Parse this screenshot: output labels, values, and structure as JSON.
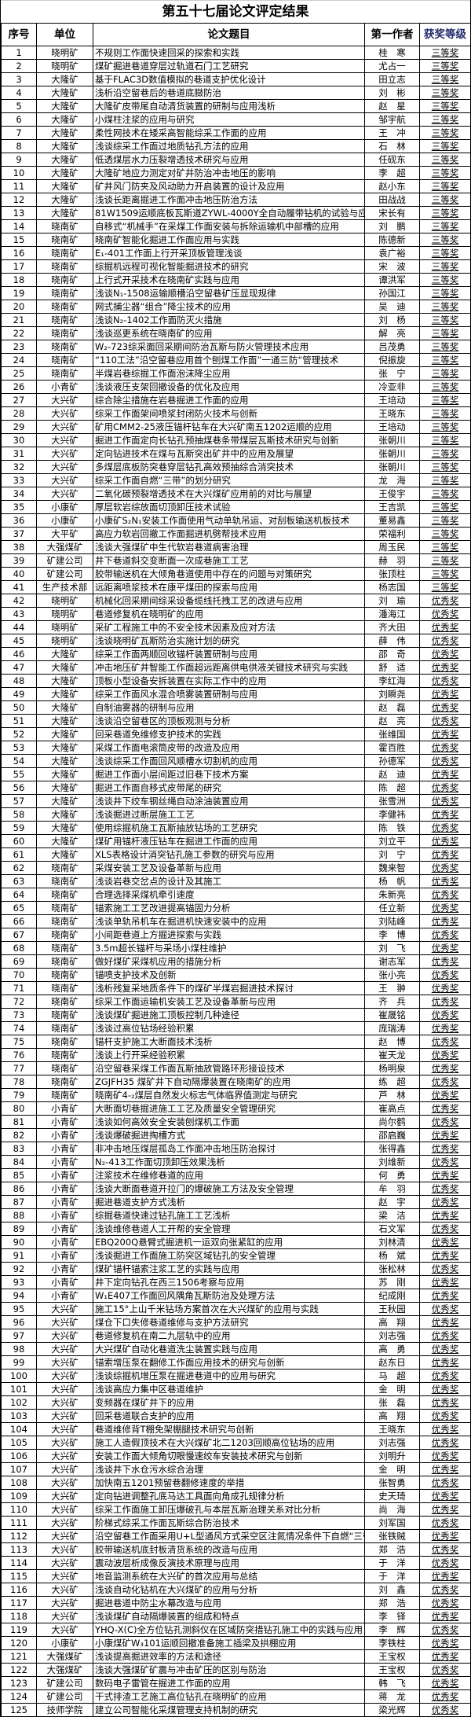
{
  "title": "第五十七届论文评定结果",
  "headers": {
    "no": "序号",
    "unit": "单位",
    "paper": "论文题目",
    "author": "第一作者",
    "award": "获奖等级"
  },
  "colors": {
    "award_header": "#1f2a6b",
    "border": "#000000"
  },
  "rows": [
    [
      "1",
      "晓明矿",
      "不规则工作面快速回采的探索和实践",
      "桂　寒",
      "三等奖"
    ],
    [
      "2",
      "晓明矿",
      "煤矿掘进巷道穿层过轨道石门工艺研究",
      "尤占一",
      "三等奖"
    ],
    [
      "3",
      "大隆矿",
      "基于FLAC3D数值模拟的巷道支护优化设计",
      "田立志",
      "三等奖"
    ],
    [
      "4",
      "大隆矿",
      "浅析沿空留巷后的巷道底臌防治",
      "刘　彬",
      "三等奖"
    ],
    [
      "5",
      "大隆矿",
      "大隆矿皮带尾自动清货装置的研制与应用浅析",
      "赵　星",
      "三等奖"
    ],
    [
      "6",
      "大隆矿",
      "小煤柱注浆的应用与研究",
      "邹宇航",
      "三等奖"
    ],
    [
      "7",
      "大隆矿",
      "柔性网技术在矮采高智能综采工作面的应用",
      "王　冲",
      "三等奖"
    ],
    [
      "8",
      "大隆矿",
      "浅谈综采工作面过地质钻孔方法的应用",
      "石　林",
      "三等奖"
    ],
    [
      "9",
      "大隆矿",
      "低透煤层水力压裂增透技术研究与应用",
      "任砚东",
      "三等奖"
    ],
    [
      "10",
      "大隆矿",
      "大隆矿地应力测定对矿井防治冲击地压的影响",
      "李　超",
      "三等奖"
    ],
    [
      "11",
      "大隆矿",
      "矿井风门防夹及风动助力开启装置的设计及应用",
      "赵小东",
      "三等奖"
    ],
    [
      "12",
      "大隆矿",
      "浅谈长距离掘进工作面冲击地压防治方法",
      "田战战",
      "三等奖"
    ],
    [
      "13",
      "大隆矿",
      "81W1509运顺底板瓦斯道ZYWL-4000Y全自动履带钻机的试验与应用",
      "宋长有",
      "三等奖"
    ],
    [
      "14",
      "晓南矿",
      "自移式“机械手”在采煤工作面安装与拆除运输机中部槽的应用",
      "刘　鹏",
      "三等奖"
    ],
    [
      "15",
      "晓南矿",
      "晓南矿智能化掘进工作面应用与实践",
      "陈德新",
      "三等奖"
    ],
    [
      "16",
      "晓南矿",
      "E₁-401工作面上行开采顶板管理浅谈",
      "袁广裕",
      "三等奖"
    ],
    [
      "17",
      "晓南矿",
      "综掘机远程可视化智能掘进技术的研究",
      "宋　波",
      "三等奖"
    ],
    [
      "18",
      "晓南矿",
      "上行式开采技术在晓南矿实践与应用",
      "谭洪军",
      "三等奖"
    ],
    [
      "19",
      "晓南矿",
      "浅谈N₁-1508运输顺槽沿空留巷矿压显现规律",
      "孙国江",
      "三等奖"
    ],
    [
      "20",
      "晓南矿",
      "网式捕尘器“组合”降尘技术的应用",
      "吴　迪",
      "三等奖"
    ],
    [
      "21",
      "晓南矿",
      "浅谈N₂-1402工作面防灭火措施",
      "刘　杨",
      "三等奖"
    ],
    [
      "22",
      "晓南矿",
      "浅谈巡更系统在晓南矿的应用",
      "解　亮",
      "三等奖"
    ],
    [
      "23",
      "晓南矿",
      "W₂-723综采面回采期间防治瓦斯与防火管理技术应用",
      "吕茂勇",
      "三等奖"
    ],
    [
      "24",
      "晓南矿",
      " “110工法”沿空留巷应用首个刨煤工作面”一通三防“管理技术",
      "倪振旋",
      "三等奖"
    ],
    [
      "25",
      "晓南矿",
      "半煤岩巷综掘工作面泡沫降尘应用",
      "张　宁",
      "三等奖"
    ],
    [
      "26",
      "小青矿",
      "浅谈液压支架回撤设备的优化及应用",
      "冷亚非",
      "三等奖"
    ],
    [
      "27",
      "大兴矿",
      "综合除尘措施在岩巷掘进工作面的应用",
      "王培动",
      "三等奖"
    ],
    [
      "28",
      "大兴矿",
      "综采工作面架间喷浆封闭防火技术与创新",
      "王晓东",
      "三等奖"
    ],
    [
      "29",
      "大兴矿",
      "矿用CMM2-25液压锚杆钻车在大兴矿南五1202运顺的应用",
      "王培动",
      "三等奖"
    ],
    [
      "30",
      "大兴矿",
      "掘进工作面定向长钻孔预抽煤巷条带煤层瓦斯技术研究与创新",
      "张朝川",
      "三等奖"
    ],
    [
      "31",
      "大兴矿",
      "定向钻进技术在煤与瓦斯突出矿井中的应用及展望",
      "张朝川",
      "三等奖"
    ],
    [
      "32",
      "大兴矿",
      "多煤层底板防突巷穿层钻孔高效预抽综合消突技术",
      "张朝川",
      "三等奖"
    ],
    [
      "33",
      "大兴矿",
      "综采工作面自燃“三带”的划分研究",
      "龙　海",
      "三等奖"
    ],
    [
      "34",
      "大兴矿",
      "二氧化碳预裂增透技术在大兴煤矿应用前的对比与展望",
      "王俊宇",
      "三等奖"
    ],
    [
      "35",
      "小康矿",
      "厚层软岩综放面切顶卸压技术试验",
      "王吉凯",
      "三等奖"
    ],
    [
      "36",
      "小康矿",
      "小康矿S₂N₁安装工作面使用气动单轨吊运、对刮板输送机板技术",
      "董易鑫",
      "三等奖"
    ],
    [
      "37",
      "大平矿",
      "高应力软岩回撤工作面掘进机劈帮技术应用",
      "荣福利",
      "三等奖"
    ],
    [
      "38",
      "大强煤矿",
      "浅谈大强煤矿中生代软岩巷道病害治理",
      "周玉民",
      "三等奖"
    ],
    [
      "39",
      "矿建公司",
      "井下巷道斜交变断面一次成巷施工工艺",
      "赫　羽",
      "三等奖"
    ],
    [
      "40",
      "矿建公司",
      "胶带输送机在大倾角巷道使用中存在的问题与对策研究",
      "张顶柱",
      "三等奖"
    ],
    [
      "41",
      "生产技术部",
      "远距离喷浆技术在康平煤田的探索与应用",
      "杨志国",
      "三等奖"
    ],
    [
      "42",
      "晓明矿",
      "机械化回采期间综采设备缆线托拽工艺的改进与应用",
      "刘　瑜",
      "优秀奖"
    ],
    [
      "43",
      "晓明矿",
      "巷道修复机在晓明矿的应用",
      "潘海江",
      "优秀奖"
    ],
    [
      "44",
      "晓明矿",
      "采矿工程施工中的不安全技术因素及应对方法",
      "齐大田",
      "优秀奖"
    ],
    [
      "45",
      "晓明矿",
      "浅谈晓明矿瓦斯防治实施计划的研究",
      "薛　伟",
      "优秀奖"
    ],
    [
      "46",
      "大隆矿",
      "综采工作面两顺回收锚杆装置研制与应用",
      "邵　奇",
      "优秀奖"
    ],
    [
      "47",
      "大隆矿",
      "冲击地压矿井智能工作面超远距离供电供液关键技术研究与实践",
      "舒　适",
      "优秀奖"
    ],
    [
      "48",
      "大隆矿",
      "顶板小型设备安拆装置在实际工作中的应用",
      "李红海",
      "优秀奖"
    ],
    [
      "49",
      "大隆矿",
      "综采工作面风水混合喷雾装置研制与应用",
      "刘瞬尧",
      "优秀奖"
    ],
    [
      "50",
      "大隆矿",
      "自制油雾器的研制与应用",
      "赵　磊",
      "优秀奖"
    ],
    [
      "51",
      "大隆矿",
      "浅谈沿空留巷区的顶板观测与分析",
      "赵　亮",
      "优秀奖"
    ],
    [
      "52",
      "大隆矿",
      "回采巷道免维修支护技术的实践",
      "张维国",
      "优秀奖"
    ],
    [
      "53",
      "大隆矿",
      "采煤工作面电滚筒皮带的改造及应用",
      "霍百胜",
      "优秀奖"
    ],
    [
      "54",
      "大隆矿",
      "浅谈综采工作面回风顺槽水切割机的应用",
      "孙德军",
      "优秀奖"
    ],
    [
      "55",
      "大隆矿",
      "掘进工作面小层间距过旧巷下技术方案",
      "赵　迪",
      "优秀奖"
    ],
    [
      "56",
      "大隆矿",
      "掘进工作面自移式皮带尾的研究",
      "陈　超",
      "优秀奖"
    ],
    [
      "57",
      "大隆矿",
      "浅谈井下绞车钢丝绳自动涂油装置应用",
      "张雪洲",
      "优秀奖"
    ],
    [
      "58",
      "大隆矿",
      "浅谈掘进过断层施工工艺",
      "李健祎",
      "优秀奖"
    ],
    [
      "59",
      "大隆矿",
      "使用综掘机施工瓦斯抽放钻场的工艺研究",
      "陈　铁",
      "优秀奖"
    ],
    [
      "60",
      "大隆矿",
      "煤矿用锚杆液压钻车在掘进工作面的应用",
      "刘立平",
      "优秀奖"
    ],
    [
      "61",
      "大隆矿",
      "XLS表格设计消突钻孔施工参数的研究与应用",
      "刘　宁",
      "优秀奖"
    ],
    [
      "62",
      "晓南矿",
      "采煤安装工艺及设备革新与应用",
      "魏来智",
      "优秀奖"
    ],
    [
      "63",
      "晓南矿",
      "浅谈岩巷交岔点的设计及其施工",
      "杨　帆",
      "优秀奖"
    ],
    [
      "64",
      "晓南矿",
      "合理选择采煤机牵引速度",
      "朱新亮",
      "优秀奖"
    ],
    [
      "65",
      "晓南矿",
      "锚索施工工艺改进提高锚固力分析",
      "任立新",
      "优秀奖"
    ],
    [
      "66",
      "晓南矿",
      "浅谈单轨吊机车在掘进机快速安装中的应用",
      "刘陆峰",
      "优秀奖"
    ],
    [
      "67",
      "晓南矿",
      "小间距巷道上方掘进探索与实践",
      "李　博",
      "优秀奖"
    ],
    [
      "68",
      "晓南矿",
      "3.5m超长锚杆与采场小煤柱维护",
      "刘　飞",
      "优秀奖"
    ],
    [
      "69",
      "晓南矿",
      "做好煤矿采煤机应用的措施分析",
      "谢志军",
      "优秀奖"
    ],
    [
      "70",
      "晓南矿",
      "锚喷支护技术及创新",
      "张小亮",
      "优秀奖"
    ],
    [
      "71",
      "晓南矿",
      "浅析残复采地质条件下的煤矿半煤岩掘进技术探讨",
      "王　翀",
      "优秀奖"
    ],
    [
      "72",
      "晓南矿",
      "综采工作面运输机安装工艺及设备革新与应用",
      "齐　兵",
      "优秀奖"
    ],
    [
      "73",
      "晓南矿",
      "浅谈煤矿掘进施工顶板控制几种途径",
      "崔晟铭",
      "优秀奖"
    ],
    [
      "74",
      "晓南矿",
      "浅谈过高位钻场经验积累",
      "庞瑞涛",
      "优秀奖"
    ],
    [
      "75",
      "晓南矿",
      "锚杆支护施工大断面技术浅析",
      "赵　博",
      "优秀奖"
    ],
    [
      "76",
      "晓南矿",
      "浅谈上行开采经验积累",
      "崔天龙",
      "优秀奖"
    ],
    [
      "77",
      "晓南矿",
      "沿空留巷采煤工作面瓦斯抽放管路环形接设技术",
      "杨明泉",
      "优秀奖"
    ],
    [
      "78",
      "晓南矿",
      "ZGJFH35 煤矿井下自动隔爆装置在晓南矿的应用",
      "练　超",
      "优秀奖"
    ],
    [
      "79",
      "晓南矿",
      "晓南矿4-₂煤层自然发火标志气体临界值测定与研究",
      "芦　林",
      "优秀奖"
    ],
    [
      "80",
      "小青矿",
      "大断面切巷掘进施工工艺及质量安全管理研究",
      "崔高点",
      "优秀奖"
    ],
    [
      "81",
      "小青矿",
      "浅谈如何高效安全安装刨煤机工作面",
      "尚尔鹤",
      "优秀奖"
    ],
    [
      "82",
      "小青矿",
      "浅谈爆破掘进掏槽方式",
      "邵启巍",
      "优秀奖"
    ],
    [
      "83",
      "小青矿",
      "非冲击地压煤层孤岛工作面冲击地压防治探讨",
      "张得鑫",
      "优秀奖"
    ],
    [
      "84",
      "小青矿",
      "N₂-413工作面切顶卸压效果浅析",
      "刘维新",
      "优秀奖"
    ],
    [
      "85",
      "小青矿",
      "注浆技术在维修巷道的应用",
      "何　勇",
      "优秀奖"
    ],
    [
      "86",
      "小青矿",
      "浅谈大断面巷道开拉门的爆破施工方法及安全管理",
      "牟　羽",
      "优秀奖"
    ],
    [
      "87",
      "小青矿",
      "掘进巷道支护方式浅析",
      "赵　宇",
      "优秀奖"
    ],
    [
      "88",
      "小青矿",
      "综掘巷道快速过钻孔施工工艺浅析",
      "梁　洁",
      "优秀奖"
    ],
    [
      "89",
      "小青矿",
      "浅谈维修巷道人工开帮的安全管理",
      "石文军",
      "优秀奖"
    ],
    [
      "90",
      "小青矿",
      "EBQ200Q悬臂式掘进机一运双向张紧缸的应用",
      "刘林清",
      "优秀奖"
    ],
    [
      "91",
      "小青矿",
      "浅谈掘进工作面施工防突区域钻孔的安全管理",
      "杨　斌",
      "优秀奖"
    ],
    [
      "92",
      "小青矿",
      "煤矿锚杆锚索注浆工艺的实践与应用",
      "张松林",
      "优秀奖"
    ],
    [
      "93",
      "小青矿",
      "井下定向钻孔在西三1506考察与应用",
      "苏　刚",
      "优秀奖"
    ],
    [
      "94",
      "小青矿",
      "W₁E407工作面回风隅角瓦斯防治及处理方法",
      "纪成刚",
      "优秀奖"
    ],
    [
      "95",
      "大兴矿",
      "施工15°上山千米钻场方案首次在大兴煤矿的应用与实践",
      "王秋园",
      "优秀奖"
    ],
    [
      "96",
      "大兴矿",
      "煤仓下口失修巷道维修与支护方法研究",
      "高　翔",
      "优秀奖"
    ],
    [
      "97",
      "大兴矿",
      "巷道修复机在南二九层轨中的应用",
      "刘志强",
      "优秀奖"
    ],
    [
      "98",
      "大兴矿",
      "大兴煤矿自动化巷道洗尘装置实践与应用",
      "高　勇",
      "优秀奖"
    ],
    [
      "99",
      "大兴矿",
      "锚索增压泵在翻修工作面应用技术的研究与创新",
      "赵东日",
      "优秀奖"
    ],
    [
      "100",
      "大兴矿",
      "浅谈综掘机增压泵在掘进巷道中的应用与研究",
      "马　超",
      "优秀奖"
    ],
    [
      "101",
      "大兴矿",
      "浅谈高应力集中区巷道维护",
      "金　明",
      "优秀奖"
    ],
    [
      "102",
      "大兴矿",
      "变频器在煤矿井下的应用",
      "张　磊",
      "优秀奖"
    ],
    [
      "103",
      "大兴矿",
      "回采巷道联合支护的应用",
      "高　翔",
      "优秀奖"
    ],
    [
      "104",
      "大兴矿",
      "巷道维修背T棚免架棚腿技术研究与创新",
      "王晓东",
      "优秀奖"
    ],
    [
      "105",
      "大兴矿",
      "施工人造假顶技术在大兴煤矿北二1203回顺高位钻场的应用",
      "刘志强",
      "优秀奖"
    ],
    [
      "106",
      "大兴矿",
      "安装工作面大倾角切眼慢速绞车安装技术研究与创新",
      "刘明升",
      "优秀奖"
    ],
    [
      "107",
      "大兴矿",
      "浅谈井下水仓污水综合治理",
      "金　明",
      "优秀奖"
    ],
    [
      "108",
      "大兴矿",
      "加快南五1201预留巷翻修速度的举措",
      "张智勇",
      "优秀奖"
    ],
    [
      "109",
      "大兴矿",
      "定向钻进调整孔底马达工具面向角成孔规律分析",
      "史天琦",
      "优秀奖"
    ],
    [
      "110",
      "大兴矿",
      "综采工作面施工卸压爆破孔与本层瓦斯治理关系对比分析",
      "尚　海",
      "优秀奖"
    ],
    [
      "111",
      "大兴矿",
      "阶梯式综采工作面瓦斯综合防治技术",
      "刘军国",
      "优秀奖"
    ],
    [
      "112",
      "大兴矿",
      "沿空留巷工作面采用U+L型通风方式采空区注氮情况条件下自燃“三带”分布规律研究",
      "张铁贼",
      "优秀奖"
    ],
    [
      "113",
      "大兴矿",
      "胶带输送机底封板清货系统的改造与应用",
      "郑　浩",
      "优秀奖"
    ],
    [
      "114",
      "大兴矿",
      "震动波层析成像反演技术原理与应用",
      "于　洋",
      "优秀奖"
    ],
    [
      "115",
      "大兴矿",
      "地音监测系统在大兴矿的首次应用与总结",
      "于　洋",
      "优秀奖"
    ],
    [
      "116",
      "大兴矿",
      "浅谈自动化钻机在大兴煤矿的应用与分析",
      "刘　鑫",
      "优秀奖"
    ],
    [
      "117",
      "大兴矿",
      "掘进巷道中防尘水幕改造与应用",
      "郑　浩",
      "优秀奖"
    ],
    [
      "118",
      "大兴矿",
      "浅谈煤矿自动隔爆装置的组成和特点",
      "李　铎",
      "优秀奖"
    ],
    [
      "119",
      "大兴矿",
      "YHQ-X(C)全方位钻孔测斜仪在区域防突措钻孔施工中的实践与应用",
      "李　辉",
      "优秀奖"
    ],
    [
      "120",
      "小康矿",
      "小康煤矿W₃101运顺回撤准备施工插梁及拱棚应用",
      "李铁柱",
      "优秀奖"
    ],
    [
      "121",
      "大强煤矿",
      "浅谈提高掘进效率的方法和途径",
      "王宝权",
      "优秀奖"
    ],
    [
      "122",
      "大强煤矿",
      "浅谈大强煤矿矿震与冲击矿压的区别与防治",
      "王宝权",
      "优秀奖"
    ],
    [
      "123",
      "矿建公司",
      "数码电子雷管在掘进工作面的应用",
      "韩　飞",
      "优秀奖"
    ],
    [
      "124",
      "矿建公司",
      "干式排渣工艺施工高位钻孔在晓明矿的应用",
      "蒋　龙",
      "优秀奖"
    ],
    [
      "125",
      "技师学院",
      "建立公司智能化采煤管理支持机制的研究",
      "梁光辉",
      "优秀奖"
    ]
  ]
}
